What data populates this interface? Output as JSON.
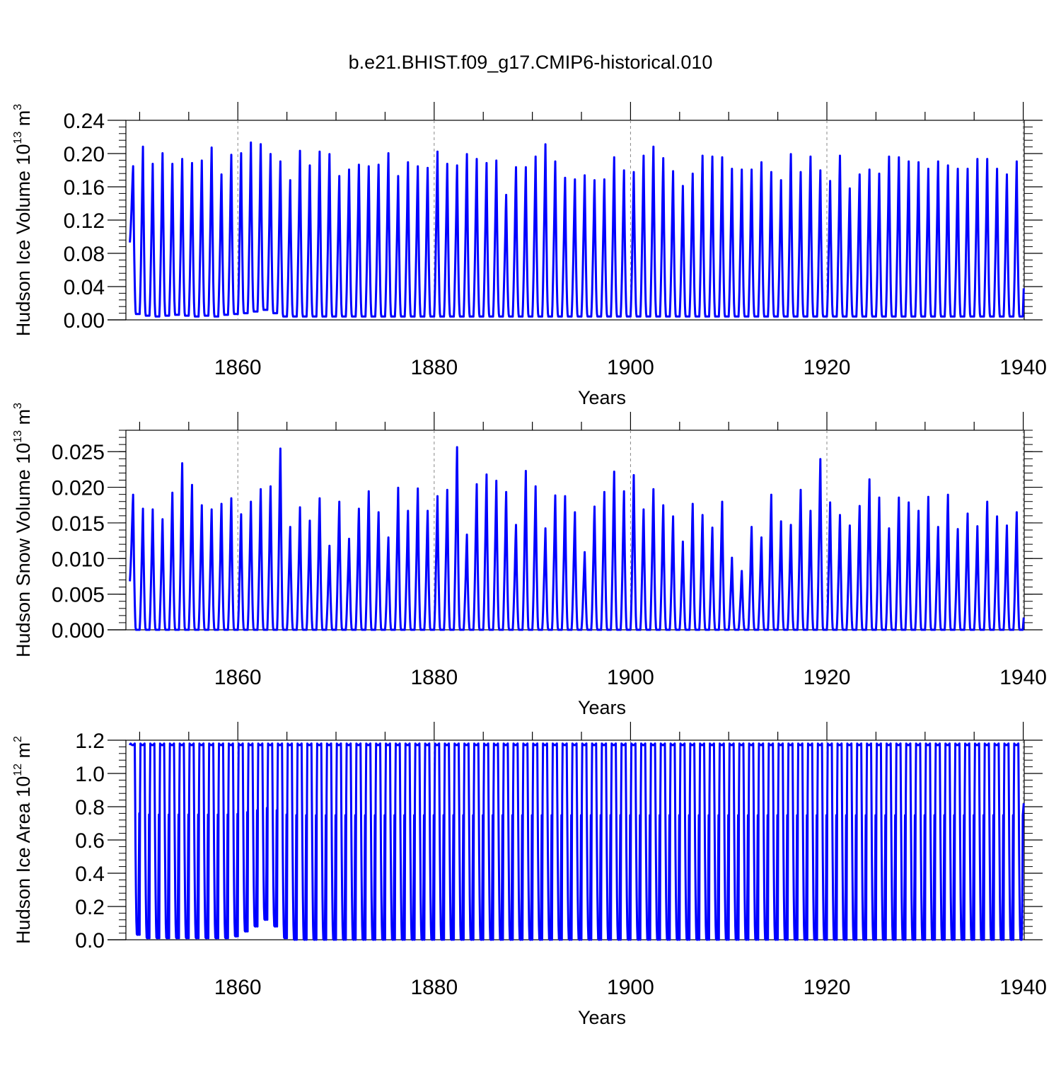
{
  "title": "b.e21.BHIST.f09_g17.CMIP6-historical.010",
  "series_color": "#0000ff",
  "chart_data": [
    {
      "type": "line",
      "title": "",
      "xlabel": "Years",
      "ylabel": {
        "text": "Hudson Ice Volume 10",
        "exp": "13",
        "unit": " m",
        "unit_exp": "3"
      },
      "xlim": [
        1848.6,
        1940.1
      ],
      "ylim": [
        0,
        0.24
      ],
      "yticks": [
        0.0,
        0.04,
        0.08,
        0.12,
        0.16,
        0.2,
        0.24
      ],
      "ytick_labels": [
        "0.00",
        "0.04",
        "0.08",
        "0.12",
        "0.16",
        "0.20",
        "0.24"
      ],
      "xticks": [
        1860,
        1880,
        1900,
        1920,
        1940
      ],
      "xtick_labels": [
        "1860",
        "1880",
        "1900",
        "1920",
        "1940"
      ],
      "series": [
        {
          "name": "Hudson Ice Volume",
          "start_year": 1849,
          "mins": [
            0.007,
            0.005,
            0.004,
            0.005,
            0.006,
            0.005,
            0.004,
            0.005,
            0.004,
            0.006,
            0.007,
            0.008,
            0.01,
            0.012,
            0.008,
            0.004,
            0.004,
            0.004,
            0.004,
            0.004,
            0.004,
            0.004,
            0.004,
            0.004,
            0.004,
            0.004,
            0.004,
            0.004,
            0.004,
            0.004,
            0.004,
            0.004,
            0.004,
            0.004,
            0.004,
            0.004,
            0.004,
            0.004,
            0.004,
            0.004,
            0.004,
            0.004,
            0.004,
            0.004,
            0.004,
            0.004,
            0.004,
            0.004,
            0.004,
            0.004,
            0.004,
            0.004,
            0.004,
            0.004,
            0.004,
            0.004,
            0.004,
            0.004,
            0.004,
            0.004,
            0.004,
            0.004,
            0.004,
            0.004,
            0.004,
            0.004,
            0.004,
            0.004,
            0.004,
            0.004,
            0.004,
            0.004,
            0.004,
            0.004,
            0.004,
            0.004,
            0.004,
            0.004,
            0.004,
            0.004,
            0.004,
            0.004,
            0.004,
            0.004,
            0.004,
            0.004,
            0.004,
            0.004,
            0.004,
            0.004,
            0.004
          ],
          "peaks": [
            0.188,
            0.212,
            0.191,
            0.204,
            0.191,
            0.197,
            0.192,
            0.195,
            0.211,
            0.178,
            0.202,
            0.204,
            0.217,
            0.215,
            0.203,
            0.194,
            0.171,
            0.207,
            0.189,
            0.206,
            0.203,
            0.176,
            0.184,
            0.19,
            0.188,
            0.19,
            0.204,
            0.176,
            0.193,
            0.188,
            0.186,
            0.206,
            0.191,
            0.189,
            0.203,
            0.197,
            0.192,
            0.195,
            0.153,
            0.187,
            0.187,
            0.2,
            0.215,
            0.194,
            0.174,
            0.172,
            0.177,
            0.171,
            0.172,
            0.199,
            0.183,
            0.181,
            0.201,
            0.212,
            0.198,
            0.182,
            0.164,
            0.179,
            0.201,
            0.2,
            0.199,
            0.185,
            0.184,
            0.184,
            0.193,
            0.181,
            0.171,
            0.203,
            0.181,
            0.2,
            0.183,
            0.17,
            0.201,
            0.161,
            0.178,
            0.184,
            0.179,
            0.2,
            0.199,
            0.194,
            0.193,
            0.185,
            0.194,
            0.189,
            0.185,
            0.185,
            0.197,
            0.197,
            0.185,
            0.178,
            0.194
          ],
          "start_value": 0.093,
          "end_value": 0.038
        }
      ]
    },
    {
      "type": "line",
      "title": "",
      "xlabel": "Years",
      "ylabel": {
        "text": "Hudson Snow Volume 10",
        "exp": "13",
        "unit": " m",
        "unit_exp": "3"
      },
      "xlim": [
        1848.6,
        1940.1
      ],
      "ylim": [
        0,
        0.028
      ],
      "yticks": [
        0.0,
        0.005,
        0.01,
        0.015,
        0.02,
        0.025
      ],
      "ytick_labels": [
        "0.000",
        "0.005",
        "0.010",
        "0.015",
        "0.020",
        "0.025"
      ],
      "xticks": [
        1860,
        1880,
        1900,
        1920,
        1940
      ],
      "xtick_labels": [
        "1860",
        "1880",
        "1900",
        "1920",
        "1940"
      ],
      "series": [
        {
          "name": "Hudson Snow Volume",
          "start_year": 1849,
          "mins": [
            0,
            0,
            0,
            0,
            0,
            0,
            0,
            0,
            0,
            0,
            0,
            0,
            0,
            0,
            0,
            0,
            0,
            0,
            0,
            0,
            0,
            0,
            0,
            0,
            0,
            0,
            0,
            0,
            0,
            0,
            0,
            0,
            0,
            0,
            0,
            0,
            0,
            0,
            0,
            0,
            0,
            0,
            0,
            0,
            0,
            0,
            0,
            0,
            0,
            0,
            0,
            0,
            0,
            0,
            0,
            0,
            0,
            0,
            0,
            0,
            0,
            0,
            0,
            0,
            0,
            0,
            0,
            0,
            0,
            0,
            0,
            0,
            0,
            0,
            0,
            0,
            0,
            0,
            0,
            0,
            0,
            0,
            0,
            0,
            0,
            0,
            0,
            0,
            0,
            0,
            0
          ],
          "peaks": [
            0.0193,
            0.0173,
            0.0172,
            0.0158,
            0.0196,
            0.0238,
            0.0207,
            0.0178,
            0.0172,
            0.018,
            0.0188,
            0.0165,
            0.0183,
            0.0201,
            0.0205,
            0.0259,
            0.0147,
            0.0175,
            0.0156,
            0.0188,
            0.012,
            0.0183,
            0.013,
            0.0173,
            0.0198,
            0.0168,
            0.0132,
            0.0203,
            0.017,
            0.0202,
            0.017,
            0.0191,
            0.02,
            0.0261,
            0.0136,
            0.0208,
            0.0222,
            0.0213,
            0.0197,
            0.015,
            0.0227,
            0.0205,
            0.0145,
            0.0192,
            0.0191,
            0.0168,
            0.0111,
            0.0176,
            0.0197,
            0.0226,
            0.0198,
            0.0221,
            0.0172,
            0.0201,
            0.0178,
            0.0162,
            0.0126,
            0.018,
            0.0164,
            0.0146,
            0.0183,
            0.0103,
            0.0084,
            0.0147,
            0.0132,
            0.0193,
            0.0155,
            0.015,
            0.02,
            0.017,
            0.0244,
            0.0182,
            0.0164,
            0.0149,
            0.0177,
            0.0215,
            0.0189,
            0.0145,
            0.0189,
            0.0182,
            0.017,
            0.019,
            0.0147,
            0.0193,
            0.0144,
            0.0166,
            0.0148,
            0.0183,
            0.0162,
            0.0149,
            0.0168
          ],
          "start_value": 0.0068,
          "end_value": 0.0017
        }
      ]
    },
    {
      "type": "line",
      "title": "",
      "xlabel": "Years",
      "ylabel": {
        "text": "Hudson Ice Area 10",
        "exp": "12",
        "unit": " m",
        "unit_exp": "2"
      },
      "xlim": [
        1848.6,
        1940.1
      ],
      "ylim": [
        0,
        1.2
      ],
      "yticks": [
        0.0,
        0.2,
        0.4,
        0.6,
        0.8,
        1.0,
        1.2
      ],
      "ytick_labels": [
        "0.0",
        "0.2",
        "0.4",
        "0.6",
        "0.8",
        "1.0",
        "1.2"
      ],
      "xticks": [
        1860,
        1880,
        1900,
        1920,
        1940
      ],
      "xtick_labels": [
        "1860",
        "1880",
        "1900",
        "1920",
        "1940"
      ],
      "series": [
        {
          "name": "Hudson Ice Area",
          "start_year": 1849,
          "mins": [
            0.03,
            0.01,
            0.01,
            0.01,
            0.01,
            0.01,
            0.01,
            0.01,
            0.01,
            0.01,
            0.02,
            0.05,
            0.08,
            0.12,
            0.08,
            0.01,
            0.0,
            0.0,
            0.0,
            0.0,
            0.0,
            0.0,
            0.0,
            0.0,
            0.0,
            0.0,
            0.0,
            0.0,
            0.0,
            0.0,
            0.0,
            0.0,
            0.0,
            0.0,
            0.0,
            0.0,
            0.0,
            0.0,
            0.0,
            0.0,
            0.0,
            0.0,
            0.0,
            0.0,
            0.0,
            0.0,
            0.0,
            0.0,
            0.0,
            0.0,
            0.0,
            0.0,
            0.0,
            0.0,
            0.0,
            0.0,
            0.0,
            0.0,
            0.0,
            0.0,
            0.0,
            0.0,
            0.0,
            0.0,
            0.0,
            0.0,
            0.0,
            0.0,
            0.0,
            0.0,
            0.0,
            0.0,
            0.0,
            0.0,
            0.0,
            0.0,
            0.0,
            0.0,
            0.0,
            0.0,
            0.0,
            0.0,
            0.0,
            0.0,
            0.0,
            0.0,
            0.0,
            0.0,
            0.0,
            0.0,
            0.0
          ],
          "peaks": [
            1.18,
            1.18,
            1.18,
            1.18,
            1.18,
            1.18,
            1.18,
            1.18,
            1.18,
            1.18,
            1.18,
            1.18,
            1.18,
            1.18,
            1.18,
            1.18,
            1.18,
            1.18,
            1.18,
            1.18,
            1.18,
            1.18,
            1.18,
            1.18,
            1.18,
            1.18,
            1.18,
            1.18,
            1.18,
            1.18,
            1.18,
            1.18,
            1.18,
            1.18,
            1.18,
            1.18,
            1.18,
            1.18,
            1.18,
            1.18,
            1.18,
            1.18,
            1.18,
            1.18,
            1.18,
            1.18,
            1.18,
            1.18,
            1.18,
            1.18,
            1.18,
            1.18,
            1.18,
            1.18,
            1.18,
            1.18,
            1.18,
            1.18,
            1.18,
            1.18,
            1.18,
            1.18,
            1.18,
            1.18,
            1.18,
            1.18,
            1.18,
            1.18,
            1.18,
            1.18,
            1.18,
            1.18,
            1.18,
            1.18,
            1.18,
            1.18,
            1.18,
            1.18,
            1.18,
            1.18,
            1.18,
            1.18,
            1.18,
            1.18,
            1.18,
            1.18,
            1.18,
            1.18,
            1.18,
            1.18,
            1.18
          ],
          "start_value": 1.17,
          "end_value": 0.82
        }
      ]
    }
  ]
}
